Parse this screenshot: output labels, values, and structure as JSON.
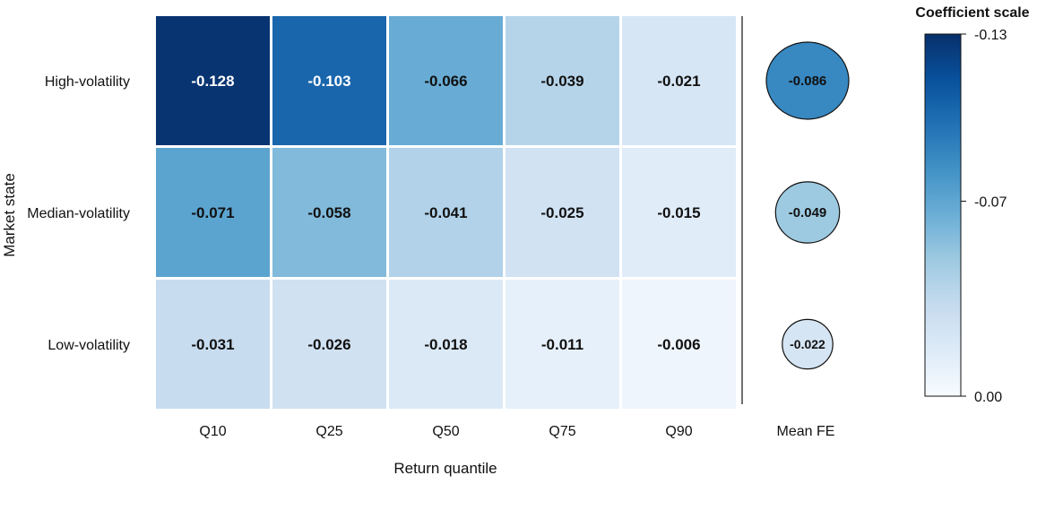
{
  "chart_data": {
    "type": "heatmap",
    "rows": [
      "High-volatility",
      "Median-volatility",
      "Low-volatility"
    ],
    "columns": [
      "Q10",
      "Q25",
      "Q50",
      "Q75",
      "Q90"
    ],
    "values": [
      [
        -0.128,
        -0.103,
        -0.066,
        -0.039,
        -0.021
      ],
      [
        -0.071,
        -0.058,
        -0.041,
        -0.025,
        -0.015
      ],
      [
        -0.031,
        -0.026,
        -0.018,
        -0.011,
        -0.006
      ]
    ],
    "value_labels": [
      [
        "-0.128",
        "-0.103",
        "-0.066",
        "-0.039",
        "-0.021"
      ],
      [
        "-0.071",
        "-0.058",
        "-0.041",
        "-0.025",
        "-0.015"
      ],
      [
        "-0.031",
        "-0.026",
        "-0.018",
        "-0.011",
        "-0.006"
      ]
    ],
    "mean_fe": {
      "label": "Mean FE",
      "values": [
        -0.086,
        -0.049,
        -0.022
      ],
      "value_labels": [
        "-0.086",
        "-0.049",
        "-0.022"
      ]
    },
    "xlabel": "Return quantile",
    "ylabel": "Market state",
    "colorbar": {
      "title": "Coefficient scale",
      "min": -0.13,
      "max": 0.0,
      "ticks": [
        -0.13,
        -0.07,
        0.0
      ],
      "tick_labels": [
        "-0.13",
        "-0.07",
        "0.00"
      ],
      "colormap": "Blues (reversed)",
      "color_dark": "#08306b",
      "color_light": "#f7fbff"
    }
  }
}
